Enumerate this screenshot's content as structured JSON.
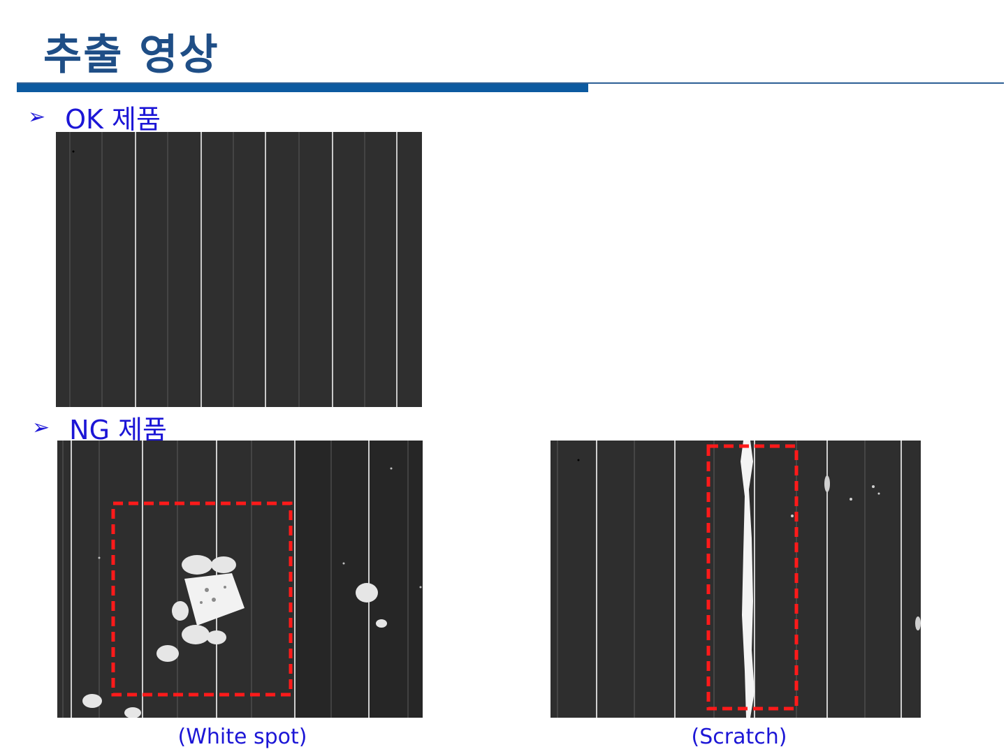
{
  "header": {
    "title": "추출 영상",
    "accent_color": "#0c5aa0"
  },
  "sections": {
    "ok": {
      "bullet_icon": "arrow-bullet-icon",
      "label": "OK 제품"
    },
    "ng": {
      "bullet_icon": "arrow-bullet-icon",
      "label": "NG 제품"
    }
  },
  "images": {
    "ok_sample": {
      "semantic": "ok-product-image"
    },
    "ng_white_spot": {
      "semantic": "ng-white-spot-image",
      "caption": "(White spot)",
      "highlight_color": "#ff1a1a"
    },
    "ng_scratch": {
      "semantic": "ng-scratch-image",
      "caption": "(Scratch)",
      "highlight_color": "#ff1a1a"
    }
  },
  "text_color": "#1c16d6"
}
